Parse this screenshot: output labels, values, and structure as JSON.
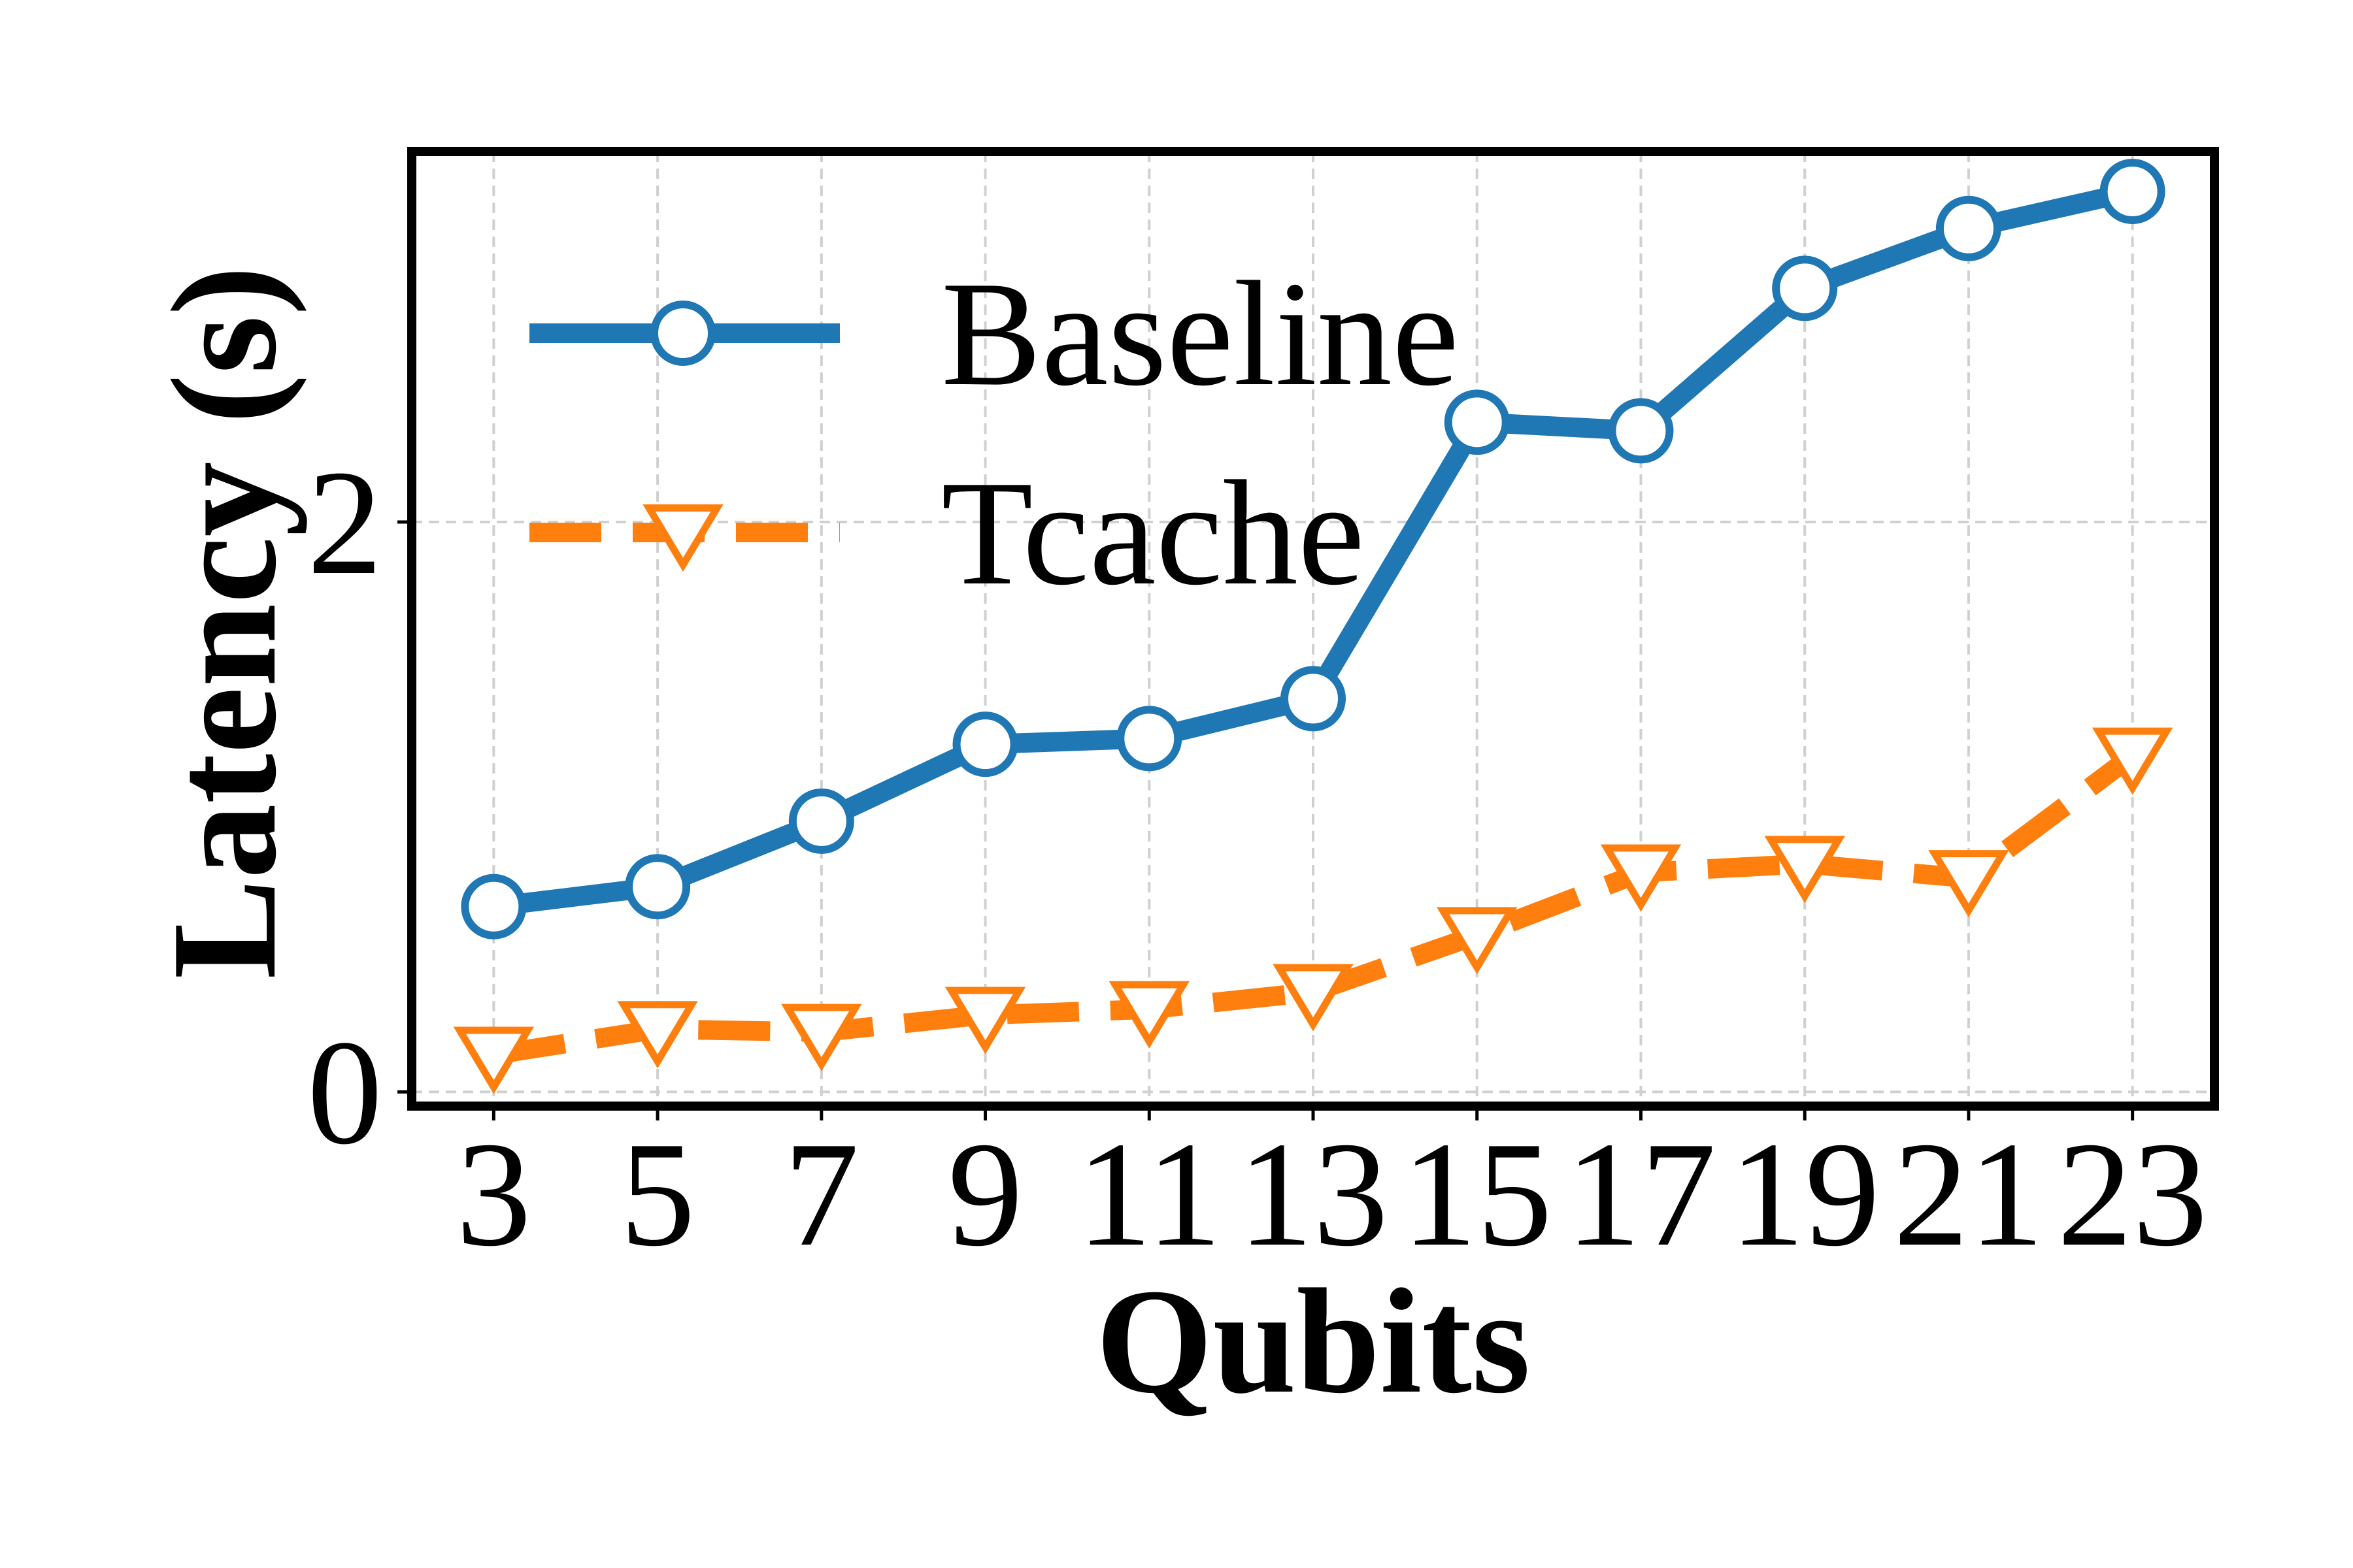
{
  "chart_data": {
    "type": "line",
    "title": "",
    "xlabel": "Qubits",
    "ylabel": "Latency (s)",
    "x": [
      3,
      5,
      7,
      9,
      11,
      13,
      15,
      17,
      19,
      21,
      23
    ],
    "x_tick_labels": [
      "3",
      "5",
      "7",
      "9",
      "11",
      "13",
      "15",
      "17",
      "19",
      "21",
      "23"
    ],
    "y_ticks": [
      0,
      2
    ],
    "y_tick_labels": [
      "0",
      "2"
    ],
    "xlim": [
      2,
      24.0
    ],
    "ylim": [
      -0.05,
      3.3
    ],
    "grid": true,
    "legend_position": "upper-left",
    "series": [
      {
        "name": "Baseline",
        "color": "#1f77b4",
        "marker": "circle-open",
        "line_style": "solid",
        "values": [
          0.65,
          0.72,
          0.95,
          1.22,
          1.24,
          1.38,
          2.35,
          2.32,
          2.82,
          3.03,
          3.16
        ]
      },
      {
        "name": "Tcache",
        "color": "#ff7f0e",
        "marker": "triangle-down-open",
        "line_style": "dashed",
        "values": [
          0.13,
          0.22,
          0.21,
          0.27,
          0.29,
          0.35,
          0.55,
          0.77,
          0.8,
          0.75,
          1.18
        ]
      }
    ]
  }
}
